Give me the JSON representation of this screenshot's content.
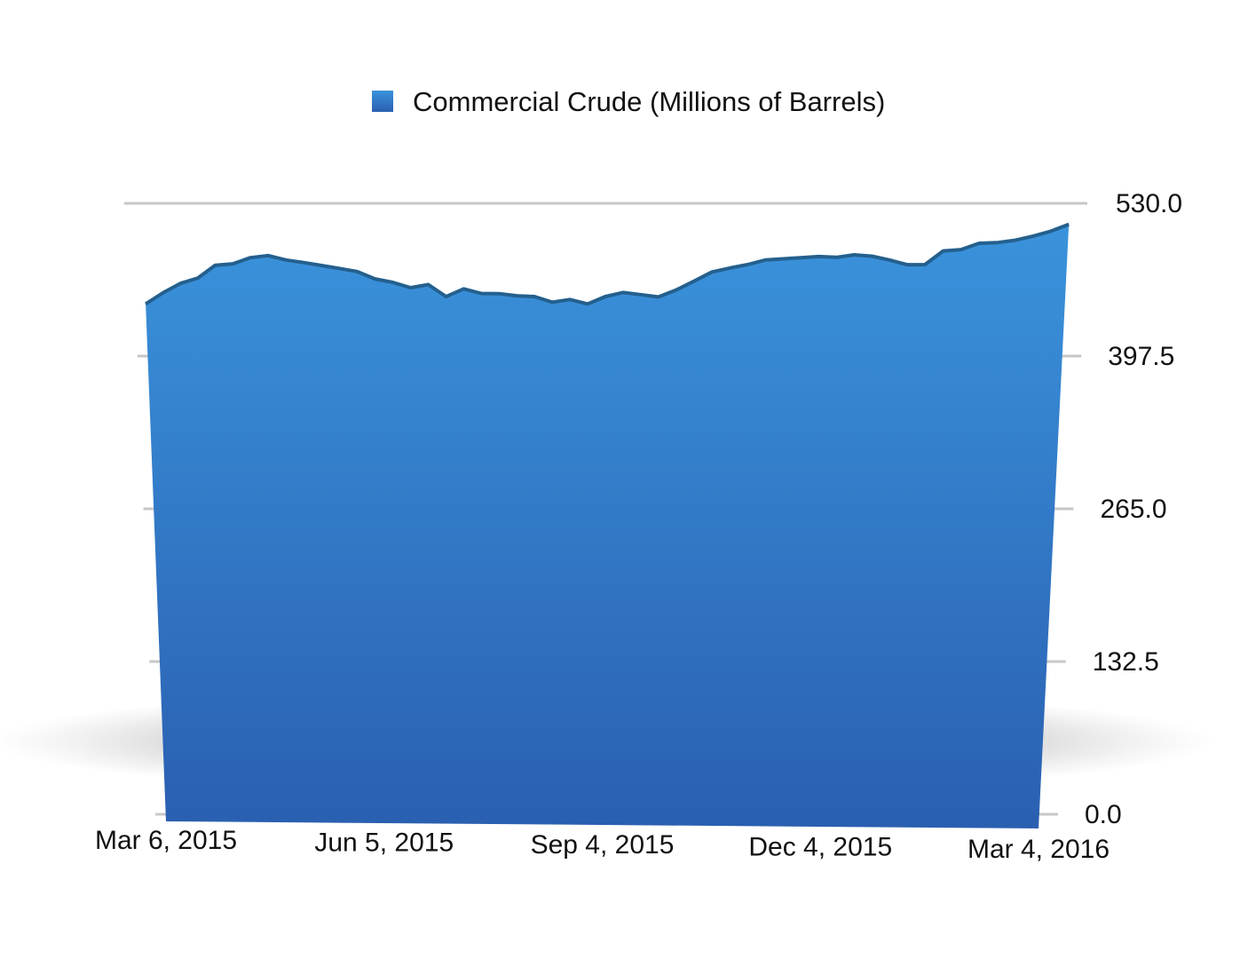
{
  "chart_data": {
    "type": "area",
    "title": "",
    "xlabel": "",
    "ylabel": "",
    "ylim": [
      0,
      530
    ],
    "y_ticks": [
      "0.0",
      "132.5",
      "265.0",
      "397.5",
      "530.0"
    ],
    "y_axis_position": "right",
    "x_tick_labels": [
      "Mar 6, 2015",
      "Jun 5, 2015",
      "Sep 4, 2015",
      "Dec 4, 2015",
      "Mar 4, 2016"
    ],
    "legend": {
      "position": "top-center",
      "entries": [
        "Commercial Crude (Millions of Barrels)"
      ]
    },
    "grid": true,
    "style": "3d-perspective",
    "colors": {
      "area_top": "#3a93dc",
      "area_bottom": "#2a5fb0",
      "edge": "#24608e",
      "grid": "#c7c7c7"
    },
    "series": [
      {
        "name": "Commercial Crude (Millions of Barrels)",
        "x": [
          "Mar 6, 2015",
          "Mar 13, 2015",
          "Mar 20, 2015",
          "Mar 27, 2015",
          "Apr 3, 2015",
          "Apr 10, 2015",
          "Apr 17, 2015",
          "Apr 24, 2015",
          "May 1, 2015",
          "May 8, 2015",
          "May 15, 2015",
          "May 22, 2015",
          "May 29, 2015",
          "Jun 5, 2015",
          "Jun 12, 2015",
          "Jun 19, 2015",
          "Jun 26, 2015",
          "Jul 3, 2015",
          "Jul 10, 2015",
          "Jul 17, 2015",
          "Jul 24, 2015",
          "Jul 31, 2015",
          "Aug 7, 2015",
          "Aug 14, 2015",
          "Aug 21, 2015",
          "Aug 28, 2015",
          "Sep 4, 2015",
          "Sep 11, 2015",
          "Sep 18, 2015",
          "Sep 25, 2015",
          "Oct 2, 2015",
          "Oct 9, 2015",
          "Oct 16, 2015",
          "Oct 23, 2015",
          "Oct 30, 2015",
          "Nov 6, 2015",
          "Nov 13, 2015",
          "Nov 20, 2015",
          "Nov 27, 2015",
          "Dec 4, 2015",
          "Dec 11, 2015",
          "Dec 18, 2015",
          "Dec 25, 2015",
          "Jan 1, 2016",
          "Jan 8, 2016",
          "Jan 15, 2016",
          "Jan 22, 2016",
          "Jan 29, 2016",
          "Feb 5, 2016",
          "Feb 12, 2016",
          "Feb 19, 2016",
          "Feb 26, 2016",
          "Mar 4, 2016"
        ],
        "values": [
          448.9,
          458.5,
          466.7,
          471.4,
          482.4,
          483.7,
          489.0,
          490.9,
          487.0,
          484.8,
          482.2,
          479.7,
          477.0,
          470.6,
          467.6,
          463.0,
          465.7,
          455.3,
          462.0,
          458.0,
          457.8,
          456.0,
          455.3,
          450.4,
          452.7,
          448.9,
          455.3,
          458.8,
          457.0,
          455.0,
          461.0,
          468.6,
          476.6,
          480.0,
          483.0,
          487.0,
          488.0,
          489.0,
          490.0,
          489.3,
          491.5,
          490.3,
          487.0,
          482.9,
          483.0,
          494.9,
          496.0,
          501.5,
          502.0,
          504.1,
          507.6,
          512.0,
          518.0
        ]
      }
    ]
  }
}
